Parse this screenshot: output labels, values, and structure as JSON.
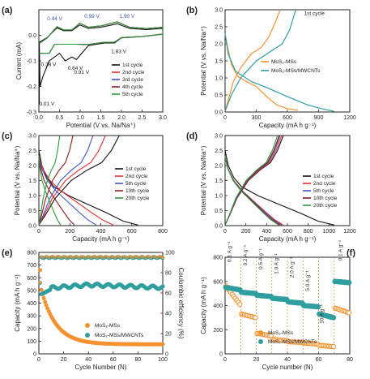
{
  "chart_data": [
    {
      "panel": "(a)",
      "type": "line",
      "xlabel": "Potential (V vs. Na/Na⁺)",
      "ylabel": "Current (mA)",
      "xlim": [
        0,
        3.0
      ],
      "ylim": [
        -0.3,
        0.1
      ],
      "xticks": [
        "0.0",
        "0.5",
        "1.0",
        "1.5",
        "2.0",
        "2.5",
        "3.0"
      ],
      "yticks": [
        "0.0",
        "-0.1",
        "-0.2",
        "-0.3"
      ],
      "legend_position": "bottom-right",
      "annotations": [
        {
          "text": "0.44 V",
          "color": "#3355aa"
        },
        {
          "text": "0.99 V",
          "color": "#3355aa"
        },
        {
          "text": "1.90 V",
          "color": "#3355aa"
        },
        {
          "text": "0.38 V",
          "color": "#222222"
        },
        {
          "text": "0.64 V",
          "color": "#222222"
        },
        {
          "text": "0.91 V",
          "color": "#222222"
        },
        {
          "text": "1.83 V",
          "color": "#222222"
        },
        {
          "text": "0.01 V",
          "color": "#222222"
        }
      ],
      "series": [
        {
          "name": "1st cycle",
          "color": "#111111",
          "first": true
        },
        {
          "name": "2nd cycle",
          "color": "#e53030"
        },
        {
          "name": "3rd cycle",
          "color": "#3a55c8"
        },
        {
          "name": "4th cycle",
          "color": "#8b1a1a"
        },
        {
          "name": "5th cycle",
          "color": "#2e9a3e"
        }
      ]
    },
    {
      "panel": "(b)",
      "type": "line",
      "xlabel": "Capacity (mA h g⁻¹)",
      "ylabel": "Potential (V vs. Na/Na⁺)",
      "xlim": [
        0,
        1200
      ],
      "ylim": [
        0,
        3.0
      ],
      "xticks": [
        "0",
        "300",
        "600",
        "900",
        "1200"
      ],
      "yticks": [
        "0.0",
        "0.5",
        "1.0",
        "1.5",
        "2.0",
        "2.5",
        "3.0"
      ],
      "annotations": [
        {
          "text": "1st cycle",
          "color": "#222222"
        }
      ],
      "legend_position": "middle-right",
      "series": [
        {
          "name": "MoS₂-MSs",
          "color": "#f5922f",
          "discharge": [
            [
              0,
              2.3
            ],
            [
              25,
              1.9
            ],
            [
              60,
              1.4
            ],
            [
              120,
              1.05
            ],
            [
              200,
              0.9
            ],
            [
              300,
              0.75
            ],
            [
              400,
              0.45
            ],
            [
              500,
              0.2
            ],
            [
              600,
              0.1
            ],
            [
              700,
              0.05
            ]
          ],
          "charge": [
            [
              0,
              0.02
            ],
            [
              40,
              0.45
            ],
            [
              80,
              0.9
            ],
            [
              150,
              1.3
            ],
            [
              250,
              1.7
            ],
            [
              350,
              1.9
            ],
            [
              420,
              2.2
            ],
            [
              480,
              2.6
            ],
            [
              530,
              3.0
            ]
          ]
        },
        {
          "name": "MoS₂-MSs/MWCNTs",
          "color": "#2f9e9e",
          "discharge": [
            [
              0,
              2.3
            ],
            [
              30,
              1.7
            ],
            [
              100,
              1.2
            ],
            [
              250,
              0.9
            ],
            [
              400,
              0.72
            ],
            [
              600,
              0.45
            ],
            [
              800,
              0.2
            ],
            [
              950,
              0.08
            ],
            [
              1050,
              0.02
            ]
          ],
          "charge": [
            [
              0,
              0.02
            ],
            [
              60,
              0.5
            ],
            [
              150,
              1.0
            ],
            [
              300,
              1.5
            ],
            [
              450,
              1.8
            ],
            [
              550,
              2.0
            ],
            [
              620,
              2.4
            ],
            [
              680,
              3.0
            ]
          ]
        }
      ]
    },
    {
      "panel": "(c)",
      "type": "line",
      "xlabel": "Capacity (mA h g⁻¹)",
      "ylabel": "Potential (V vs. Na/Na⁺)",
      "xlim": [
        0,
        800
      ],
      "ylim": [
        0,
        3.0
      ],
      "xticks": [
        "0",
        "200",
        "400",
        "600",
        "800"
      ],
      "yticks": [
        "0.0",
        "0.5",
        "1.0",
        "1.5",
        "2.0",
        "2.5",
        "3.0"
      ],
      "legend_position": "bottom-right",
      "series": [
        {
          "name": "1st cycle",
          "color": "#111111",
          "dis": 640,
          "ch": 520
        },
        {
          "name": "2nd cycle",
          "color": "#e53030",
          "dis": 480,
          "ch": 430
        },
        {
          "name": "5th cycle",
          "color": "#3a55c8",
          "dis": 370,
          "ch": 350
        },
        {
          "name": "10th cycle",
          "color": "#8b1a1a",
          "dis": 230,
          "ch": 220
        },
        {
          "name": "20th cycle",
          "color": "#2e9a3e",
          "dis": 140,
          "ch": 135
        }
      ]
    },
    {
      "panel": "(d)",
      "type": "line",
      "xlabel": "Capacity (mA h g⁻¹)",
      "ylabel": "Potential (V vs. Na/Na⁺)",
      "xlim": [
        0,
        1200
      ],
      "ylim": [
        0,
        3.0
      ],
      "xticks": [
        "0",
        "200",
        "400",
        "600",
        "800",
        "1000",
        "1200"
      ],
      "yticks": [
        "0.0",
        "0.5",
        "1.0",
        "1.5",
        "2.0",
        "2.5",
        "3.0"
      ],
      "legend_position": "bottom-right",
      "series": [
        {
          "name": "1st cycle",
          "color": "#111111",
          "dis": 1050,
          "ch": 560
        },
        {
          "name": "2nd cycle",
          "color": "#e53030",
          "dis": 560,
          "ch": 545
        },
        {
          "name": "5th cycle",
          "color": "#3a55c8",
          "dis": 545,
          "ch": 530
        },
        {
          "name": "10th cycle",
          "color": "#8b1a1a",
          "dis": 530,
          "ch": 520
        },
        {
          "name": "20th cycle",
          "color": "#2e9a3e",
          "dis": 515,
          "ch": 505
        }
      ]
    },
    {
      "panel": "(e)",
      "type": "scatter",
      "xlabel": "Cycle Number (N)",
      "ylabel": "Capacity (mA h g⁻¹)",
      "y2label": "Coulombic efficiency (%)",
      "xlim": [
        0,
        100
      ],
      "ylim": [
        0,
        800
      ],
      "y2lim": [
        0,
        100
      ],
      "xticks": [
        "0",
        "20",
        "40",
        "60",
        "80",
        "100"
      ],
      "yticks": [
        "0",
        "100",
        "200",
        "300",
        "400",
        "500",
        "600",
        "700",
        "800"
      ],
      "y2ticks": [
        "0",
        "20",
        "40",
        "60",
        "80",
        "100"
      ],
      "legend_position": "bottom-right",
      "series": [
        {
          "name": "MoS₂-MSs",
          "color": "#f5922f"
        },
        {
          "name": "MoS₂-MSs/MWCNTs",
          "color": "#2f9e9e"
        }
      ]
    },
    {
      "panel": "(f)",
      "type": "scatter",
      "xlabel": "Cycle number (N)",
      "ylabel": "Capacity (mA h g⁻¹)",
      "xlim": [
        0,
        80
      ],
      "ylim": [
        0,
        800
      ],
      "xticks": [
        "0",
        "20",
        "40",
        "60",
        "80"
      ],
      "yticks": [
        "0",
        "200",
        "400",
        "600",
        "800"
      ],
      "rate_labels": [
        "0.1 A g⁻¹",
        "0.2 A g⁻¹",
        "0.5 A g⁻¹",
        "1.0 A g⁻¹",
        "2.0 A g⁻¹",
        "5.0 A g⁻¹",
        "10 A g⁻¹",
        "0.1 A g⁻¹"
      ],
      "rate_values": [
        0.1,
        0.2,
        0.5,
        1.0,
        2.0,
        5.0,
        10,
        0.1
      ],
      "legend_position": "bottom-center",
      "series": [
        {
          "name": "MoS₂-MSs",
          "color": "#f5922f",
          "levels": [
            [
              0,
              10,
              560,
              410
            ],
            [
              10,
              20,
              330,
              300
            ],
            [
              20,
              30,
              170,
              150
            ],
            [
              30,
              40,
              120,
              110
            ],
            [
              40,
              50,
              100,
              95
            ],
            [
              50,
              60,
              90,
              80
            ],
            [
              60,
              70,
              70,
              60
            ],
            [
              70,
              80,
              380,
              340
            ]
          ]
        },
        {
          "name": "MoS₂-MSs/MWCNTs",
          "color": "#2f9e9e",
          "levels": [
            [
              0,
              10,
              550,
              530
            ],
            [
              10,
              20,
              510,
              500
            ],
            [
              20,
              30,
              485,
              475
            ],
            [
              30,
              40,
              460,
              450
            ],
            [
              40,
              50,
              430,
              420
            ],
            [
              50,
              60,
              400,
              390
            ],
            [
              60,
              70,
              330,
              300
            ],
            [
              70,
              80,
              600,
              590
            ]
          ]
        }
      ]
    }
  ]
}
